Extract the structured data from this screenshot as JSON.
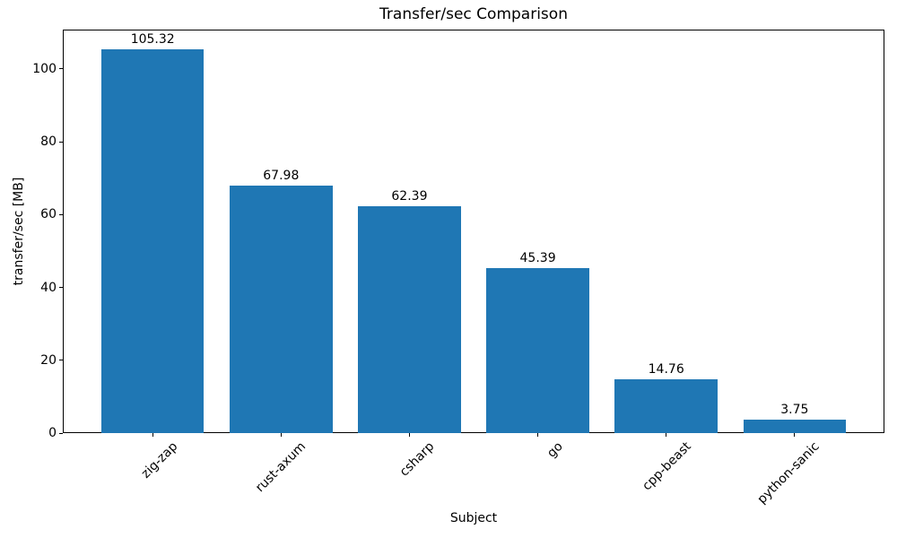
{
  "chart_data": {
    "type": "bar",
    "title": "Transfer/sec Comparison",
    "xlabel": "Subject",
    "ylabel": "transfer/sec [MB]",
    "categories": [
      "zig-zap",
      "rust-axum",
      "csharp",
      "go",
      "cpp-beast",
      "python-sanic"
    ],
    "values": [
      105.32,
      67.98,
      62.39,
      45.39,
      14.76,
      3.75
    ],
    "value_labels": [
      "105.32",
      "67.98",
      "62.39",
      "45.39",
      "14.76",
      "3.75"
    ],
    "yticks": [
      0,
      20,
      40,
      60,
      80,
      100
    ],
    "ylim": [
      0,
      110.8
    ],
    "bar_color": "#1f77b4",
    "text_color": "#000000",
    "grid": false,
    "legend": null
  }
}
